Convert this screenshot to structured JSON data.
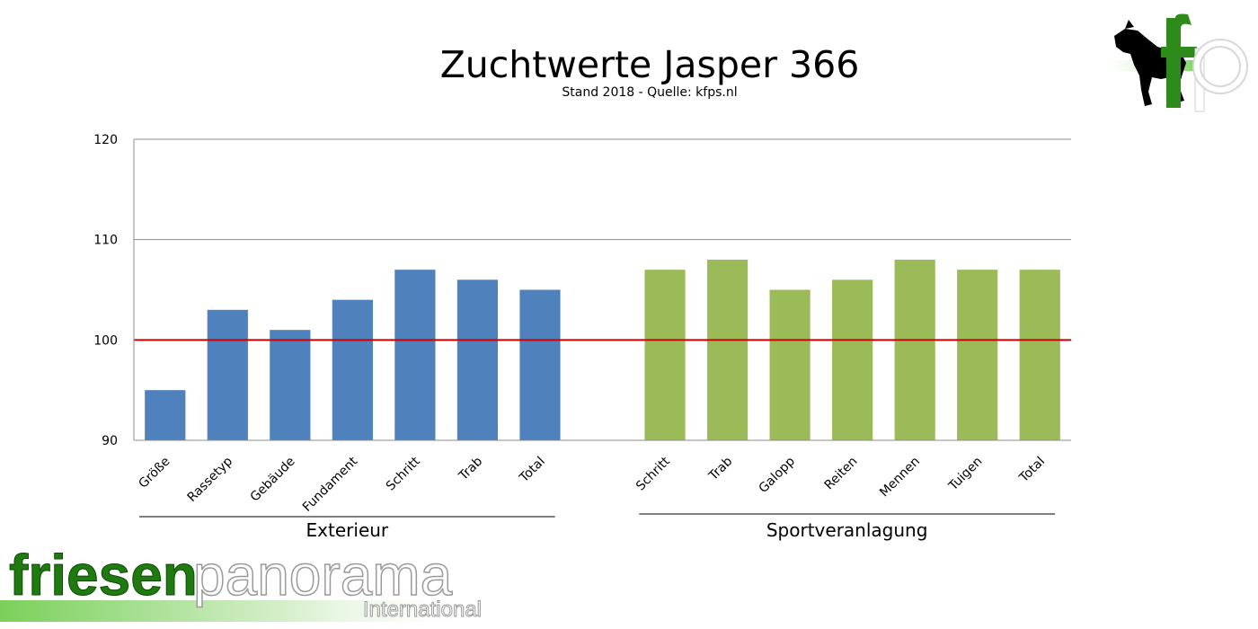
{
  "chart_data": {
    "type": "bar",
    "title": "Zuchtwerte Jasper 366",
    "subtitle": "Stand 2018 - Quelle: kfps.nl",
    "ylim": [
      90,
      120
    ],
    "yticks": [
      "90",
      "100",
      "110",
      "120"
    ],
    "reference_line": {
      "value": 100,
      "color": "#cc0000"
    },
    "grid": true,
    "groups": [
      {
        "name": "Exterieur",
        "color": "#4f81bd",
        "categories": [
          "Größe",
          "Rassetyp",
          "Gebäude",
          "Fundament",
          "Schritt",
          "Trab",
          "Total"
        ],
        "values": [
          95,
          103,
          101,
          104,
          107,
          106,
          105
        ]
      },
      {
        "name": "Sportveranlagung",
        "color": "#9bbb59",
        "categories": [
          "Schritt",
          "Trab",
          "Galopp",
          "Reiten",
          "Mennen",
          "Tuigen",
          "Total"
        ],
        "values": [
          107,
          108,
          105,
          106,
          108,
          107,
          107
        ]
      }
    ]
  },
  "branding": {
    "bottom_logo_word1": "friesen",
    "bottom_logo_word2": "panorama",
    "bottom_logo_sub": "International",
    "bottom_logo_color": "#1f7a0f",
    "corner_logo_text": "fp",
    "corner_logo_icon": "horse-silhouette-icon"
  }
}
